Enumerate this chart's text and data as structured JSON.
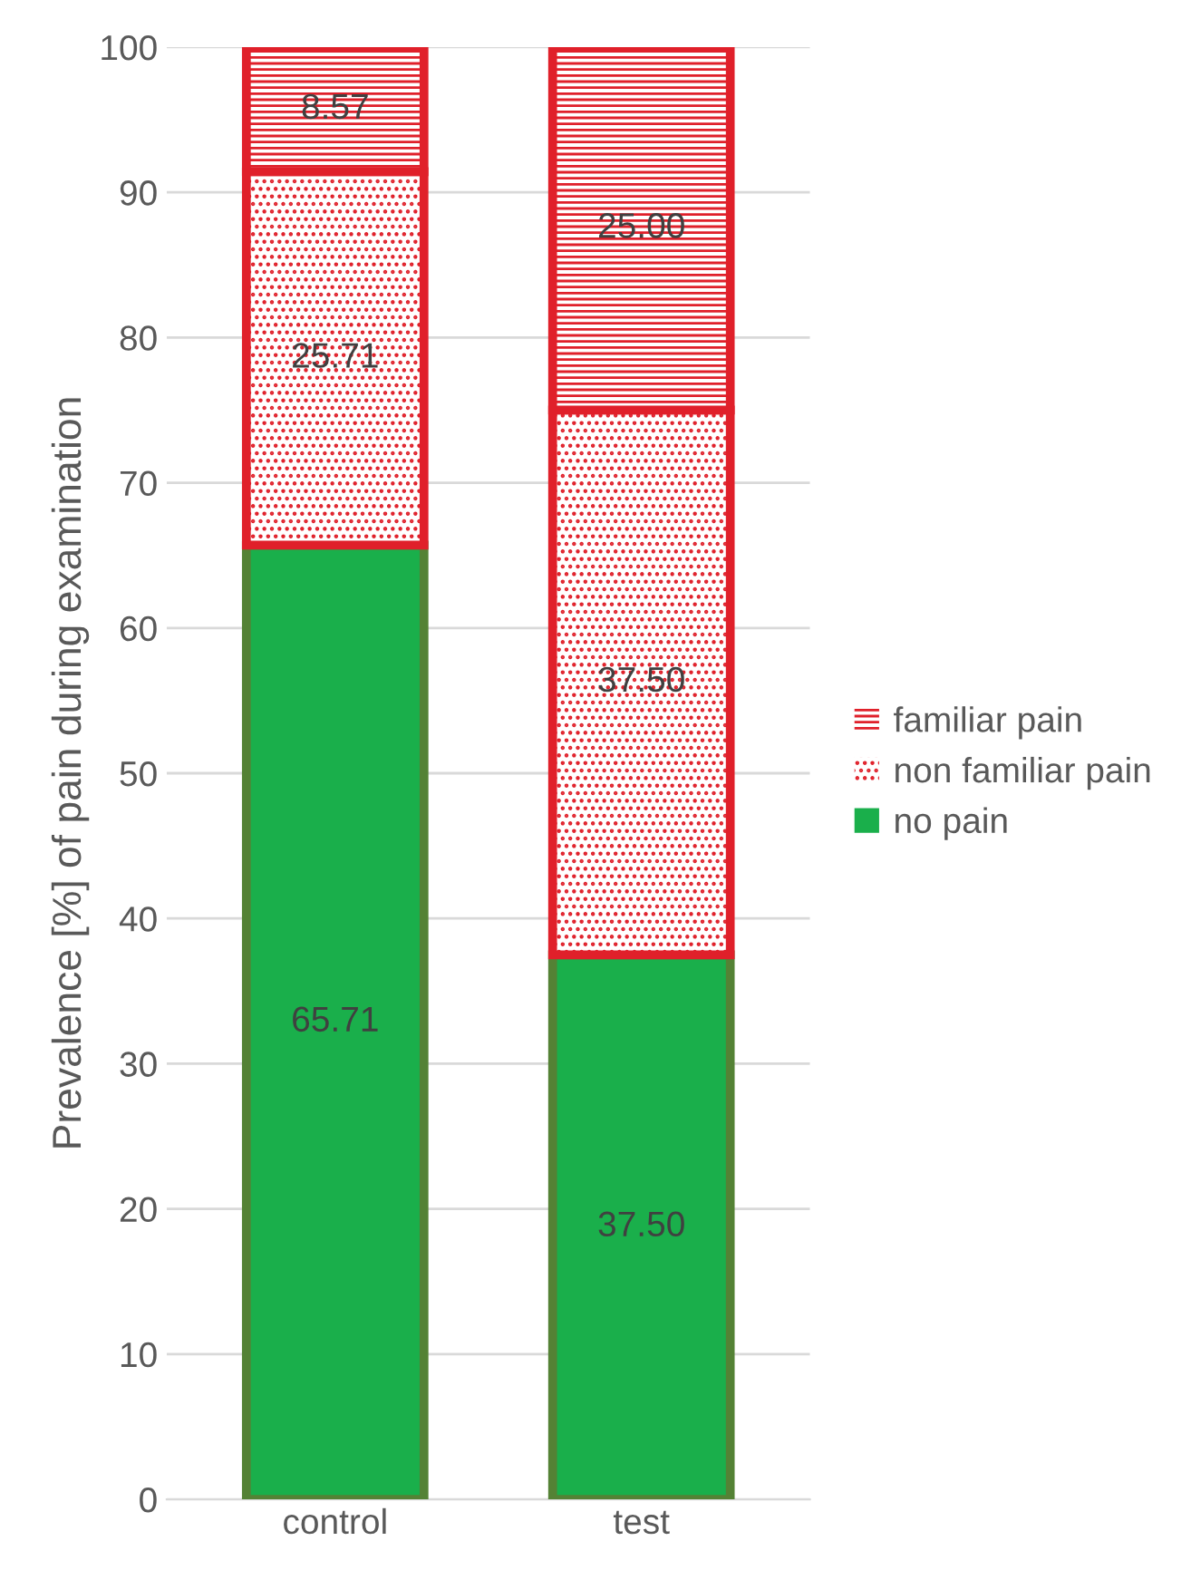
{
  "chart_data": {
    "type": "bar",
    "stacked": true,
    "ylabel": "Prevalence [%] of pain during examination",
    "categories": [
      "control",
      "test"
    ],
    "series": [
      {
        "name": "no pain",
        "color": "#1aaf4b",
        "values": [
          65.71,
          37.5
        ],
        "value_labels": [
          "65.71",
          "37.50"
        ]
      },
      {
        "name": "non familiar pain",
        "color": "#e0202a",
        "values": [
          25.71,
          37.5
        ],
        "value_labels": [
          "25.71",
          "37.50"
        ]
      },
      {
        "name": "familiar pain",
        "color": "#e0202a",
        "values": [
          8.57,
          25.0
        ],
        "value_labels": [
          "8.57",
          "25.00"
        ]
      }
    ],
    "ylim": [
      0,
      100
    ],
    "yticks": [
      0,
      10,
      20,
      30,
      40,
      50,
      60,
      70,
      80,
      90,
      100
    ],
    "grid": "y",
    "legend": "right"
  }
}
